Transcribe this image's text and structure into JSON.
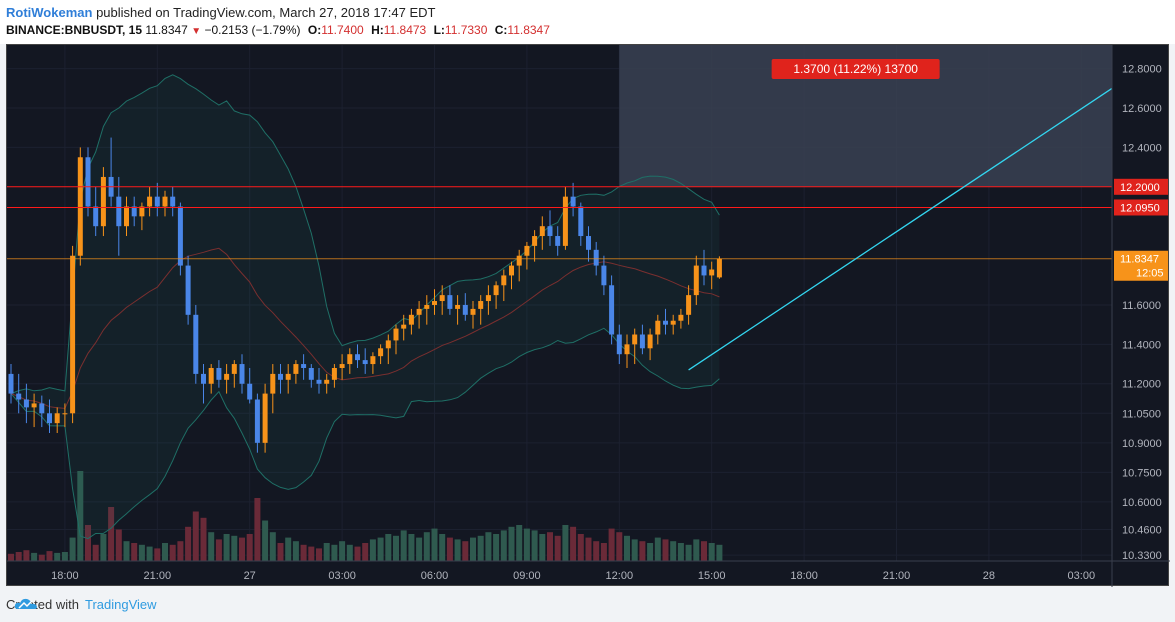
{
  "header": {
    "user": "RotiWokeman",
    "published": "published on TradingView.com, March 27, 2018 17:47 EDT",
    "symbol": "BINANCE:BNBUSDT, 15",
    "last": "11.8347",
    "change": "−0.2153 (−1.79%)",
    "ohlc": [
      {
        "label": "O:",
        "value": "11.7400"
      },
      {
        "label": "H:",
        "value": "11.8473"
      },
      {
        "label": "L:",
        "value": "11.7330"
      },
      {
        "label": "C:",
        "value": "11.8347"
      }
    ]
  },
  "footer": {
    "created_with": "Created with",
    "brand": "TradingView",
    "logo_icon": "cloud-icon"
  },
  "colors": {
    "background": "#131722",
    "bullish": "#f7931a",
    "bearish": "#4a86e8",
    "horizontal_line": "#ff1a1a",
    "trendline": "#33d6f0",
    "price_line": "#f7931a",
    "measure_box": "#3a4152",
    "bollinger": "#1f6f66",
    "ma": "#7a2f2f",
    "volume_up": "#2f5a4f",
    "volume_down": "#6a2a38"
  },
  "chart_data": {
    "type": "candlestick",
    "y_axis": {
      "min": 10.3,
      "max": 12.92,
      "ticks": [
        "12.8000",
        "12.6000",
        "12.4000",
        "12.0950",
        "11.6000",
        "11.4000",
        "11.2000",
        "11.0500",
        "10.9000",
        "10.7500",
        "10.6000",
        "10.4600",
        "10.3300"
      ]
    },
    "x_axis": {
      "labels": [
        {
          "t": 7,
          "text": "18:00"
        },
        {
          "t": 19,
          "text": "21:00"
        },
        {
          "t": 31,
          "text": "27"
        },
        {
          "t": 43,
          "text": "03:00"
        },
        {
          "t": 55,
          "text": "06:00"
        },
        {
          "t": 67,
          "text": "09:00"
        },
        {
          "t": 79,
          "text": "12:00"
        },
        {
          "t": 91,
          "text": "15:00"
        },
        {
          "t": 103,
          "text": "18:00"
        },
        {
          "t": 115,
          "text": "21:00"
        },
        {
          "t": 127,
          "text": "28"
        },
        {
          "t": 139,
          "text": "03:00"
        }
      ]
    },
    "horizontal_lines": [
      {
        "value": 12.2,
        "label": "12.2000"
      },
      {
        "value": 12.095,
        "label": "12.0950"
      }
    ],
    "current_price": {
      "value": 11.8347,
      "label": "11.8347",
      "countdown": "12:05"
    },
    "measure": {
      "t_start": 79,
      "t_end": 143,
      "price_low": 12.2,
      "price_high": 12.92,
      "label": "1.3700 (11.22%) 13700"
    },
    "trendline": [
      {
        "t": 88,
        "price": 11.27
      },
      {
        "t": 143,
        "price": 12.7
      }
    ],
    "candles": [
      [
        11.25,
        11.3,
        11.1,
        11.15
      ],
      [
        11.15,
        11.25,
        11.05,
        11.12
      ],
      [
        11.12,
        11.2,
        11.0,
        11.08
      ],
      [
        11.08,
        11.15,
        10.98,
        11.1
      ],
      [
        11.1,
        11.14,
        10.98,
        11.05
      ],
      [
        11.05,
        11.12,
        10.95,
        11.0
      ],
      [
        11.0,
        11.08,
        10.95,
        11.05
      ],
      [
        11.05,
        11.1,
        10.98,
        11.05
      ],
      [
        11.05,
        11.9,
        11.0,
        11.85
      ],
      [
        11.85,
        12.4,
        11.8,
        12.35
      ],
      [
        12.35,
        12.4,
        12.05,
        12.1
      ],
      [
        12.1,
        12.2,
        11.95,
        12.0
      ],
      [
        12.0,
        12.3,
        11.95,
        12.25
      ],
      [
        12.25,
        12.45,
        12.1,
        12.15
      ],
      [
        12.15,
        12.25,
        11.85,
        12.0
      ],
      [
        12.0,
        12.15,
        11.95,
        12.1
      ],
      [
        12.1,
        12.15,
        12.0,
        12.05
      ],
      [
        12.05,
        12.12,
        11.98,
        12.1
      ],
      [
        12.1,
        12.2,
        12.05,
        12.15
      ],
      [
        12.15,
        12.22,
        12.05,
        12.1
      ],
      [
        12.1,
        12.18,
        12.05,
        12.15
      ],
      [
        12.15,
        12.2,
        12.05,
        12.1
      ],
      [
        12.1,
        12.12,
        11.75,
        11.8
      ],
      [
        11.8,
        11.85,
        11.5,
        11.55
      ],
      [
        11.55,
        11.6,
        11.2,
        11.25
      ],
      [
        11.25,
        11.3,
        11.1,
        11.2
      ],
      [
        11.2,
        11.3,
        11.15,
        11.28
      ],
      [
        11.28,
        11.32,
        11.18,
        11.22
      ],
      [
        11.22,
        11.3,
        11.15,
        11.25
      ],
      [
        11.25,
        11.32,
        11.18,
        11.3
      ],
      [
        11.3,
        11.35,
        11.15,
        11.2
      ],
      [
        11.2,
        11.28,
        11.1,
        11.12
      ],
      [
        11.12,
        11.15,
        10.85,
        10.9
      ],
      [
        10.9,
        11.2,
        10.85,
        11.15
      ],
      [
        11.15,
        11.3,
        11.05,
        11.25
      ],
      [
        11.25,
        11.3,
        11.15,
        11.22
      ],
      [
        11.22,
        11.3,
        11.15,
        11.25
      ],
      [
        11.25,
        11.32,
        11.2,
        11.3
      ],
      [
        11.3,
        11.35,
        11.22,
        11.28
      ],
      [
        11.28,
        11.3,
        11.18,
        11.22
      ],
      [
        11.22,
        11.28,
        11.15,
        11.2
      ],
      [
        11.2,
        11.25,
        11.15,
        11.22
      ],
      [
        11.22,
        11.3,
        11.18,
        11.28
      ],
      [
        11.28,
        11.35,
        11.22,
        11.3
      ],
      [
        11.3,
        11.38,
        11.25,
        11.35
      ],
      [
        11.35,
        11.4,
        11.28,
        11.32
      ],
      [
        11.32,
        11.38,
        11.25,
        11.3
      ],
      [
        11.3,
        11.36,
        11.25,
        11.34
      ],
      [
        11.34,
        11.4,
        11.3,
        11.38
      ],
      [
        11.38,
        11.45,
        11.3,
        11.42
      ],
      [
        11.42,
        11.5,
        11.35,
        11.48
      ],
      [
        11.48,
        11.55,
        11.42,
        11.5
      ],
      [
        11.5,
        11.58,
        11.45,
        11.55
      ],
      [
        11.55,
        11.62,
        11.48,
        11.58
      ],
      [
        11.58,
        11.65,
        11.5,
        11.6
      ],
      [
        11.6,
        11.68,
        11.55,
        11.62
      ],
      [
        11.62,
        11.7,
        11.55,
        11.65
      ],
      [
        11.65,
        11.7,
        11.55,
        11.58
      ],
      [
        11.58,
        11.65,
        11.5,
        11.6
      ],
      [
        11.6,
        11.66,
        11.52,
        11.55
      ],
      [
        11.55,
        11.62,
        11.48,
        11.58
      ],
      [
        11.58,
        11.65,
        11.5,
        11.62
      ],
      [
        11.62,
        11.7,
        11.55,
        11.65
      ],
      [
        11.65,
        11.72,
        11.58,
        11.7
      ],
      [
        11.7,
        11.78,
        11.62,
        11.75
      ],
      [
        11.75,
        11.82,
        11.68,
        11.8
      ],
      [
        11.8,
        11.88,
        11.72,
        11.85
      ],
      [
        11.85,
        11.92,
        11.78,
        11.9
      ],
      [
        11.9,
        11.98,
        11.82,
        11.95
      ],
      [
        11.95,
        12.05,
        11.88,
        12.0
      ],
      [
        12.0,
        12.08,
        11.9,
        11.95
      ],
      [
        11.95,
        12.0,
        11.85,
        11.9
      ],
      [
        11.9,
        12.2,
        11.88,
        12.15
      ],
      [
        12.15,
        12.22,
        12.05,
        12.1
      ],
      [
        12.1,
        12.12,
        11.9,
        11.95
      ],
      [
        11.95,
        12.0,
        11.82,
        11.88
      ],
      [
        11.88,
        11.92,
        11.75,
        11.8
      ],
      [
        11.8,
        11.85,
        11.65,
        11.7
      ],
      [
        11.7,
        11.75,
        11.4,
        11.45
      ],
      [
        11.45,
        11.5,
        11.3,
        11.35
      ],
      [
        11.35,
        11.45,
        11.28,
        11.4
      ],
      [
        11.4,
        11.48,
        11.3,
        11.45
      ],
      [
        11.45,
        11.5,
        11.35,
        11.38
      ],
      [
        11.38,
        11.48,
        11.32,
        11.45
      ],
      [
        11.45,
        11.55,
        11.4,
        11.52
      ],
      [
        11.52,
        11.58,
        11.45,
        11.5
      ],
      [
        11.5,
        11.55,
        11.45,
        11.52
      ],
      [
        11.52,
        11.58,
        11.48,
        11.55
      ],
      [
        11.55,
        11.7,
        11.5,
        11.65
      ],
      [
        11.65,
        11.85,
        11.6,
        11.8
      ],
      [
        11.8,
        11.88,
        11.7,
        11.75
      ],
      [
        11.75,
        11.82,
        11.68,
        11.78
      ],
      [
        11.74,
        11.847,
        11.733,
        11.8347
      ]
    ],
    "volume_max": 100,
    "volumes": [
      8,
      10,
      12,
      9,
      7,
      11,
      9,
      10,
      26,
      100,
      40,
      18,
      30,
      60,
      35,
      22,
      20,
      18,
      16,
      14,
      20,
      18,
      22,
      38,
      55,
      48,
      32,
      24,
      30,
      28,
      26,
      30,
      70,
      45,
      32,
      20,
      26,
      22,
      18,
      16,
      14,
      20,
      18,
      22,
      18,
      16,
      20,
      24,
      26,
      30,
      28,
      34,
      30,
      26,
      32,
      36,
      30,
      26,
      24,
      22,
      26,
      28,
      32,
      30,
      34,
      38,
      40,
      36,
      34,
      30,
      32,
      28,
      40,
      38,
      30,
      26,
      22,
      20,
      36,
      32,
      28,
      24,
      22,
      20,
      26,
      24,
      22,
      20,
      18,
      24,
      22,
      20,
      18
    ]
  }
}
